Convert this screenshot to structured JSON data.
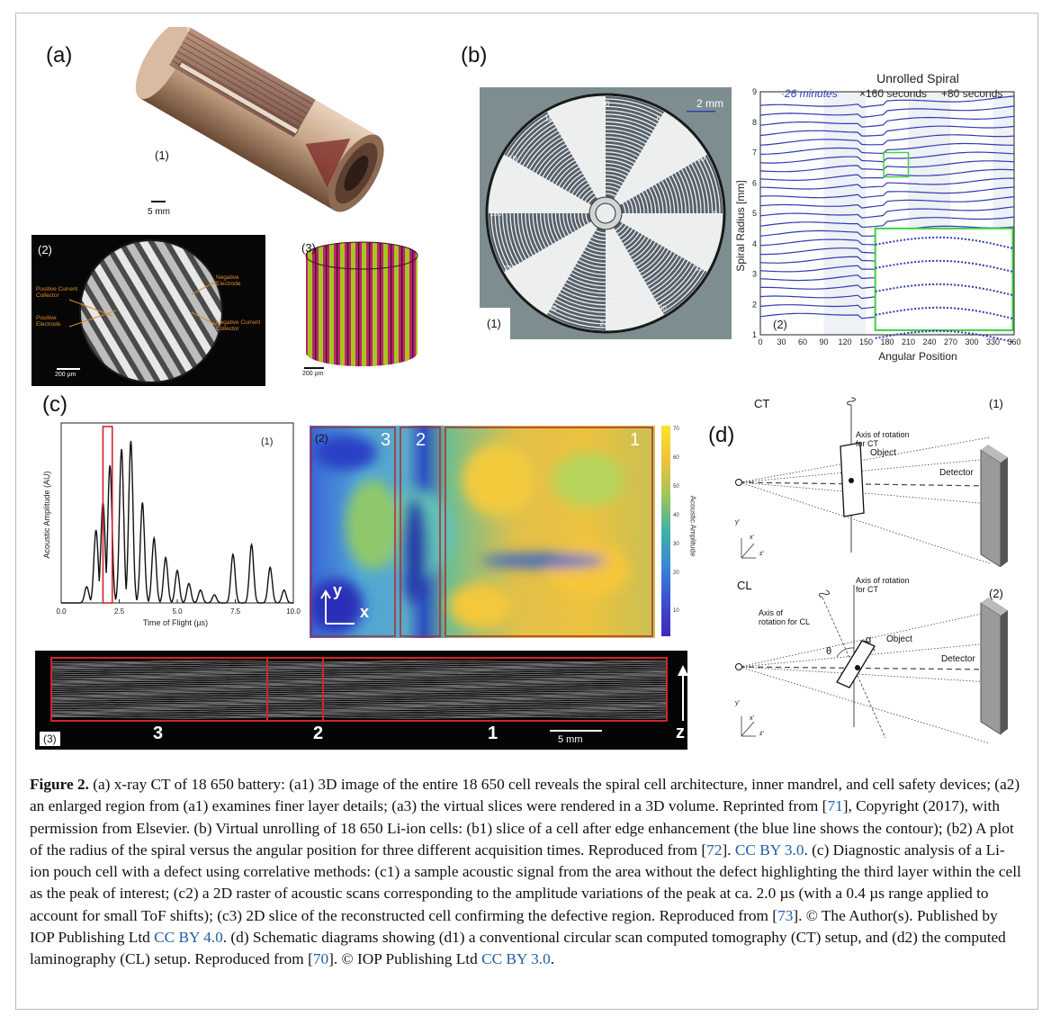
{
  "figure": {
    "panel_letters": {
      "a": "(a)",
      "b": "(b)",
      "c": "(c)",
      "d": "(d)"
    },
    "a": {
      "sub1_label": "(1)",
      "scale1": "5 mm",
      "sub2_label": "(2)",
      "scale2": "200 µm",
      "sub2_annotations": [
        "Positive Current Collector",
        "Positive Electrode",
        "Negative Electrode",
        "Negative Current Collector"
      ],
      "sub3_label": "(3)",
      "scale3": "200 µm"
    },
    "b": {
      "sub1_label": "(1)",
      "scale1": "2 mm",
      "angle_labels": [
        "90",
        "60",
        "30",
        "0",
        "330",
        "300",
        "270",
        "240",
        "210",
        "180",
        "150",
        "120"
      ],
      "sub2_label": "(2)"
    },
    "c": {
      "sub1_label": "(1)",
      "sub2_label": "(2)",
      "sub2_regions": [
        "3",
        "2",
        "1"
      ],
      "sub2_axis_y": "y",
      "sub2_axis_x": "x",
      "colorbar_label": "Acoustic Amplitude",
      "colorbar_ticks": [
        "70",
        "60",
        "50",
        "40",
        "30",
        "20",
        "10"
      ],
      "sub3_label": "(3)",
      "sub3_regions": [
        "3",
        "2",
        "1"
      ],
      "sub3_scale": "5 mm",
      "sub3_axis": "z"
    },
    "d": {
      "sub1_title": "CT",
      "sub1_label": "(1)",
      "sub1_axis": "Axis of rotation for CT",
      "object": "Object",
      "detector": "Detector",
      "sub2_title": "CL",
      "sub2_label": "(2)",
      "sub2_axis_ct": "Axis of rotation for CT",
      "sub2_axis_cl": "Axis of rotation for CL",
      "theta": "θ",
      "alpha": "α",
      "coord_y": "y'",
      "coord_x": "x'",
      "coord_z": "z'"
    }
  },
  "chart_data": [
    {
      "type": "line",
      "title": "Unrolled Spiral",
      "xlabel": "Angular Position",
      "ylabel": "Spiral Radius [mm]",
      "xlim": [
        0,
        360
      ],
      "ylim": [
        1,
        9
      ],
      "x_ticks": [
        0,
        30,
        60,
        90,
        120,
        150,
        180,
        210,
        240,
        270,
        300,
        330,
        360
      ],
      "y_ticks": [
        1,
        2,
        3,
        4,
        5,
        6,
        7,
        8,
        9
      ],
      "legend": [
        "·26 minutes",
        "×160 seconds",
        "+80 seconds"
      ],
      "legend_position": "top",
      "layers_radius_mm": [
        1.6,
        1.9,
        2.2,
        2.5,
        2.8,
        3.1,
        3.4,
        3.7,
        4.0,
        4.3,
        4.6,
        4.9,
        5.2,
        5.5,
        5.8,
        6.1,
        6.4,
        6.7,
        7.0,
        7.3,
        7.6,
        7.9,
        8.2,
        8.5
      ]
    },
    {
      "type": "line",
      "xlabel": "Time of Flight (µs)",
      "ylabel": "Acoustic Amplitude (AU)",
      "xlim": [
        0,
        10
      ],
      "x_ticks": [
        "0.0",
        "2.5",
        "5.0",
        "7.5",
        "10.0"
      ],
      "highlight_window_us": [
        1.8,
        2.2
      ],
      "peaks": [
        {
          "x": 1.1,
          "y": 0.1
        },
        {
          "x": 1.5,
          "y": 0.45
        },
        {
          "x": 1.8,
          "y": 0.62
        },
        {
          "x": 2.1,
          "y": 0.85
        },
        {
          "x": 2.6,
          "y": 0.95
        },
        {
          "x": 3.0,
          "y": 1.0
        },
        {
          "x": 3.5,
          "y": 0.62
        },
        {
          "x": 4.0,
          "y": 0.4
        },
        {
          "x": 4.5,
          "y": 0.28
        },
        {
          "x": 5.0,
          "y": 0.2
        },
        {
          "x": 5.5,
          "y": 0.12
        },
        {
          "x": 6.0,
          "y": 0.08
        },
        {
          "x": 6.6,
          "y": 0.05
        },
        {
          "x": 7.4,
          "y": 0.3
        },
        {
          "x": 8.2,
          "y": 0.36
        },
        {
          "x": 9.0,
          "y": 0.22
        },
        {
          "x": 9.6,
          "y": 0.08
        }
      ]
    }
  ],
  "caption": {
    "label": "Figure 2.",
    "seg1": " (a) x-ray CT of 18 650 battery: (a1) 3D image of the entire 18 650 cell reveals the spiral cell architecture, inner mandrel, and cell safety devices; (a2) an enlarged region from (a1) examines finer layer details; (a3) the virtual slices were rendered in a 3D volume. Reprinted from [",
    "ref71": "71",
    "seg2": "], Copyright (2017), with permission from Elsevier. (b) Virtual unrolling of 18 650 Li-ion cells: (b1) slice of a cell after edge enhancement (the blue line shows the contour); (b2) A plot of the radius of the spiral versus the angular position for three different acquisition times. Reproduced from [",
    "ref72": "72",
    "seg3": "]. ",
    "lic1": "CC BY 3.0",
    "seg4": ". (c) Diagnostic analysis of a Li-ion pouch cell with a defect using correlative methods: (c1) a sample acoustic signal from the area without the defect highlighting the third layer within the cell as the peak of interest; (c2) a 2D raster of acoustic scans corresponding to the amplitude variations of the peak at ca. 2.0 µs (with a 0.4 µs range applied to account for small ToF shifts); (c3) 2D slice of the reconstructed cell confirming the defective region. Reproduced from [",
    "ref73": "73",
    "seg5": "]. © The Author(s). Published by IOP Publishing Ltd ",
    "lic2": "CC BY 4.0",
    "seg6": ". (d) Schematic diagrams showing (d1) a conventional circular scan computed tomography (CT) setup, and (d2) the computed laminography (CL) setup. Reproduced from [",
    "ref70": "70",
    "seg7": "]. © IOP Publishing Ltd ",
    "lic3": "CC BY 3.0",
    "seg8": "."
  }
}
